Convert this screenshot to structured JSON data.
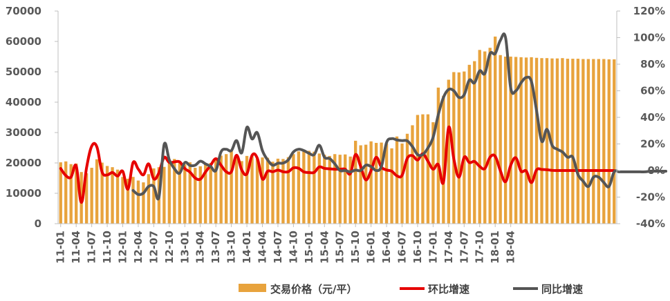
{
  "chart_data": {
    "type": "bar+line",
    "categories_start": "2011-01",
    "x_tick_labels": [
      "11-01",
      "11-04",
      "11-07",
      "11-10",
      "12-01",
      "12-04",
      "12-07",
      "12-10",
      "13-01",
      "13-04",
      "13-07",
      "13-10",
      "14-01",
      "14-04",
      "14-07",
      "14-10",
      "15-01",
      "15-04",
      "15-07",
      "15-10",
      "16-01",
      "16-04",
      "16-07",
      "16-10",
      "17-01",
      "17-04",
      "17-07",
      "17-10",
      "18-01",
      "18-04"
    ],
    "y_left": {
      "ticks": [
        0,
        10000,
        20000,
        30000,
        40000,
        50000,
        60000,
        70000
      ],
      "labels": [
        "0",
        "10000",
        "20000",
        "30000",
        "40000",
        "50000",
        "60000",
        "70000"
      ],
      "ylim": [
        0,
        70000
      ]
    },
    "y_right": {
      "ticks": [
        -40,
        -20,
        0,
        20,
        40,
        60,
        80,
        100,
        120
      ],
      "labels": [
        "-40%",
        "-20%",
        "0%",
        "20%",
        "40%",
        "60%",
        "80%",
        "100%",
        "120%"
      ],
      "ylim": [
        -40,
        120
      ]
    },
    "legend_position": "bottom",
    "series": [
      {
        "name": "交易价格（元/平）",
        "kind": "bar",
        "axis": "left",
        "color": "#E8A33D",
        "values": [
          20200,
          20500,
          19600,
          19800,
          17000,
          16600,
          18400,
          21200,
          20100,
          19000,
          18600,
          17800,
          15400,
          14800,
          15400,
          14200,
          13600,
          16300,
          18200,
          18600,
          18700,
          19800,
          21300,
          20600,
          19500,
          20200,
          18400,
          18900,
          19600,
          20000,
          21300,
          22400,
          22900,
          24100,
          22400,
          20600,
          22300,
          22300,
          21400,
          21800,
          21700,
          20400,
          21400,
          21300,
          21900,
          22900,
          23800,
          23700,
          24000,
          23700,
          23100,
          22700,
          22300,
          22900,
          22700,
          22800,
          22100,
          27300,
          25800,
          26000,
          27100,
          26600,
          26700,
          26400,
          24800,
          28700,
          26400,
          29600,
          32400,
          35800,
          36000,
          36000,
          33400,
          44800,
          42100,
          47400,
          49900,
          49800,
          50100,
          52300,
          53500,
          57200,
          56700,
          57900,
          61600,
          55500,
          55000,
          55000,
          54900,
          54800,
          54700,
          54800,
          54600,
          54500,
          54500,
          54400,
          54400,
          54500,
          54300,
          54300,
          54300,
          54200,
          54200,
          54200,
          54200,
          54200,
          54100,
          54100
        ]
      },
      {
        "name": "环比增速",
        "kind": "line",
        "axis": "right",
        "color": "#E60000",
        "values": [
          1.5,
          -3.8,
          -5,
          3.5,
          -24,
          2,
          18.3,
          17.8,
          -1.1,
          -3.3,
          -1.5,
          -4.1,
          -0.6,
          -14,
          6,
          1.1,
          -3.2,
          5,
          -6.3,
          -1.6,
          9.8,
          6,
          6.5,
          6.5,
          1.5,
          -1.2,
          -5.6,
          -6.5,
          -1.1,
          4,
          8.9,
          4,
          -0.9,
          -0.9,
          11.5,
          0.4,
          -2.5,
          11.4,
          9.4,
          -6.4,
          -0.5,
          -0.9,
          0.3,
          -0.9,
          -0.9,
          2,
          1.7,
          -1,
          -1.5,
          -1.4,
          2.7,
          1.6,
          1.3,
          1,
          1,
          1,
          -2.3,
          12,
          3,
          -7,
          -0.1,
          9.9,
          2.5,
          0.4,
          -0.5,
          -4,
          -3.6,
          9.1,
          11.2,
          7.9,
          12.6,
          7,
          1,
          4.5,
          -8.8,
          32.5,
          8.8,
          -5,
          10,
          6,
          6.8,
          3.1,
          1.5,
          10,
          10.7,
          -0.2,
          -8.4,
          4,
          9.5,
          -0.5,
          -0.3,
          -9.1,
          0.5,
          0.8,
          0.6,
          0.1,
          0,
          0,
          0,
          0,
          0,
          0,
          0,
          0,
          0,
          0,
          0,
          0
        ]
      },
      {
        "name": "同比增速",
        "kind": "line",
        "axis": "right",
        "color": "#555555",
        "start_index": 14,
        "values": [
          -15,
          -18,
          -17,
          -12,
          -12,
          -20,
          19.5,
          8,
          1.3,
          -2,
          6,
          3.8,
          4,
          7,
          5,
          3,
          0,
          14,
          16,
          15,
          22.5,
          13.3,
          32.5,
          23.8,
          28.5,
          15,
          8,
          4,
          5.5,
          5.6,
          8,
          14,
          16,
          15,
          13,
          12,
          19,
          10,
          9,
          5,
          0,
          0,
          -1,
          0.3,
          0,
          4,
          3,
          0,
          3,
          21,
          24,
          23,
          22.5,
          22.3,
          18,
          12,
          12,
          17,
          25,
          42,
          55,
          61,
          60,
          55,
          57,
          68,
          66,
          75,
          73,
          88,
          88,
          98,
          100,
          62,
          60,
          66,
          70,
          67,
          45,
          22,
          31,
          19,
          16,
          14,
          10,
          10,
          -3,
          -8,
          -12,
          -5,
          -5,
          -9,
          -12,
          -1,
          -1,
          -1,
          -1,
          -1,
          -1,
          -1,
          -0.5,
          -0.5,
          -0.5,
          -0.5
        ]
      }
    ]
  }
}
